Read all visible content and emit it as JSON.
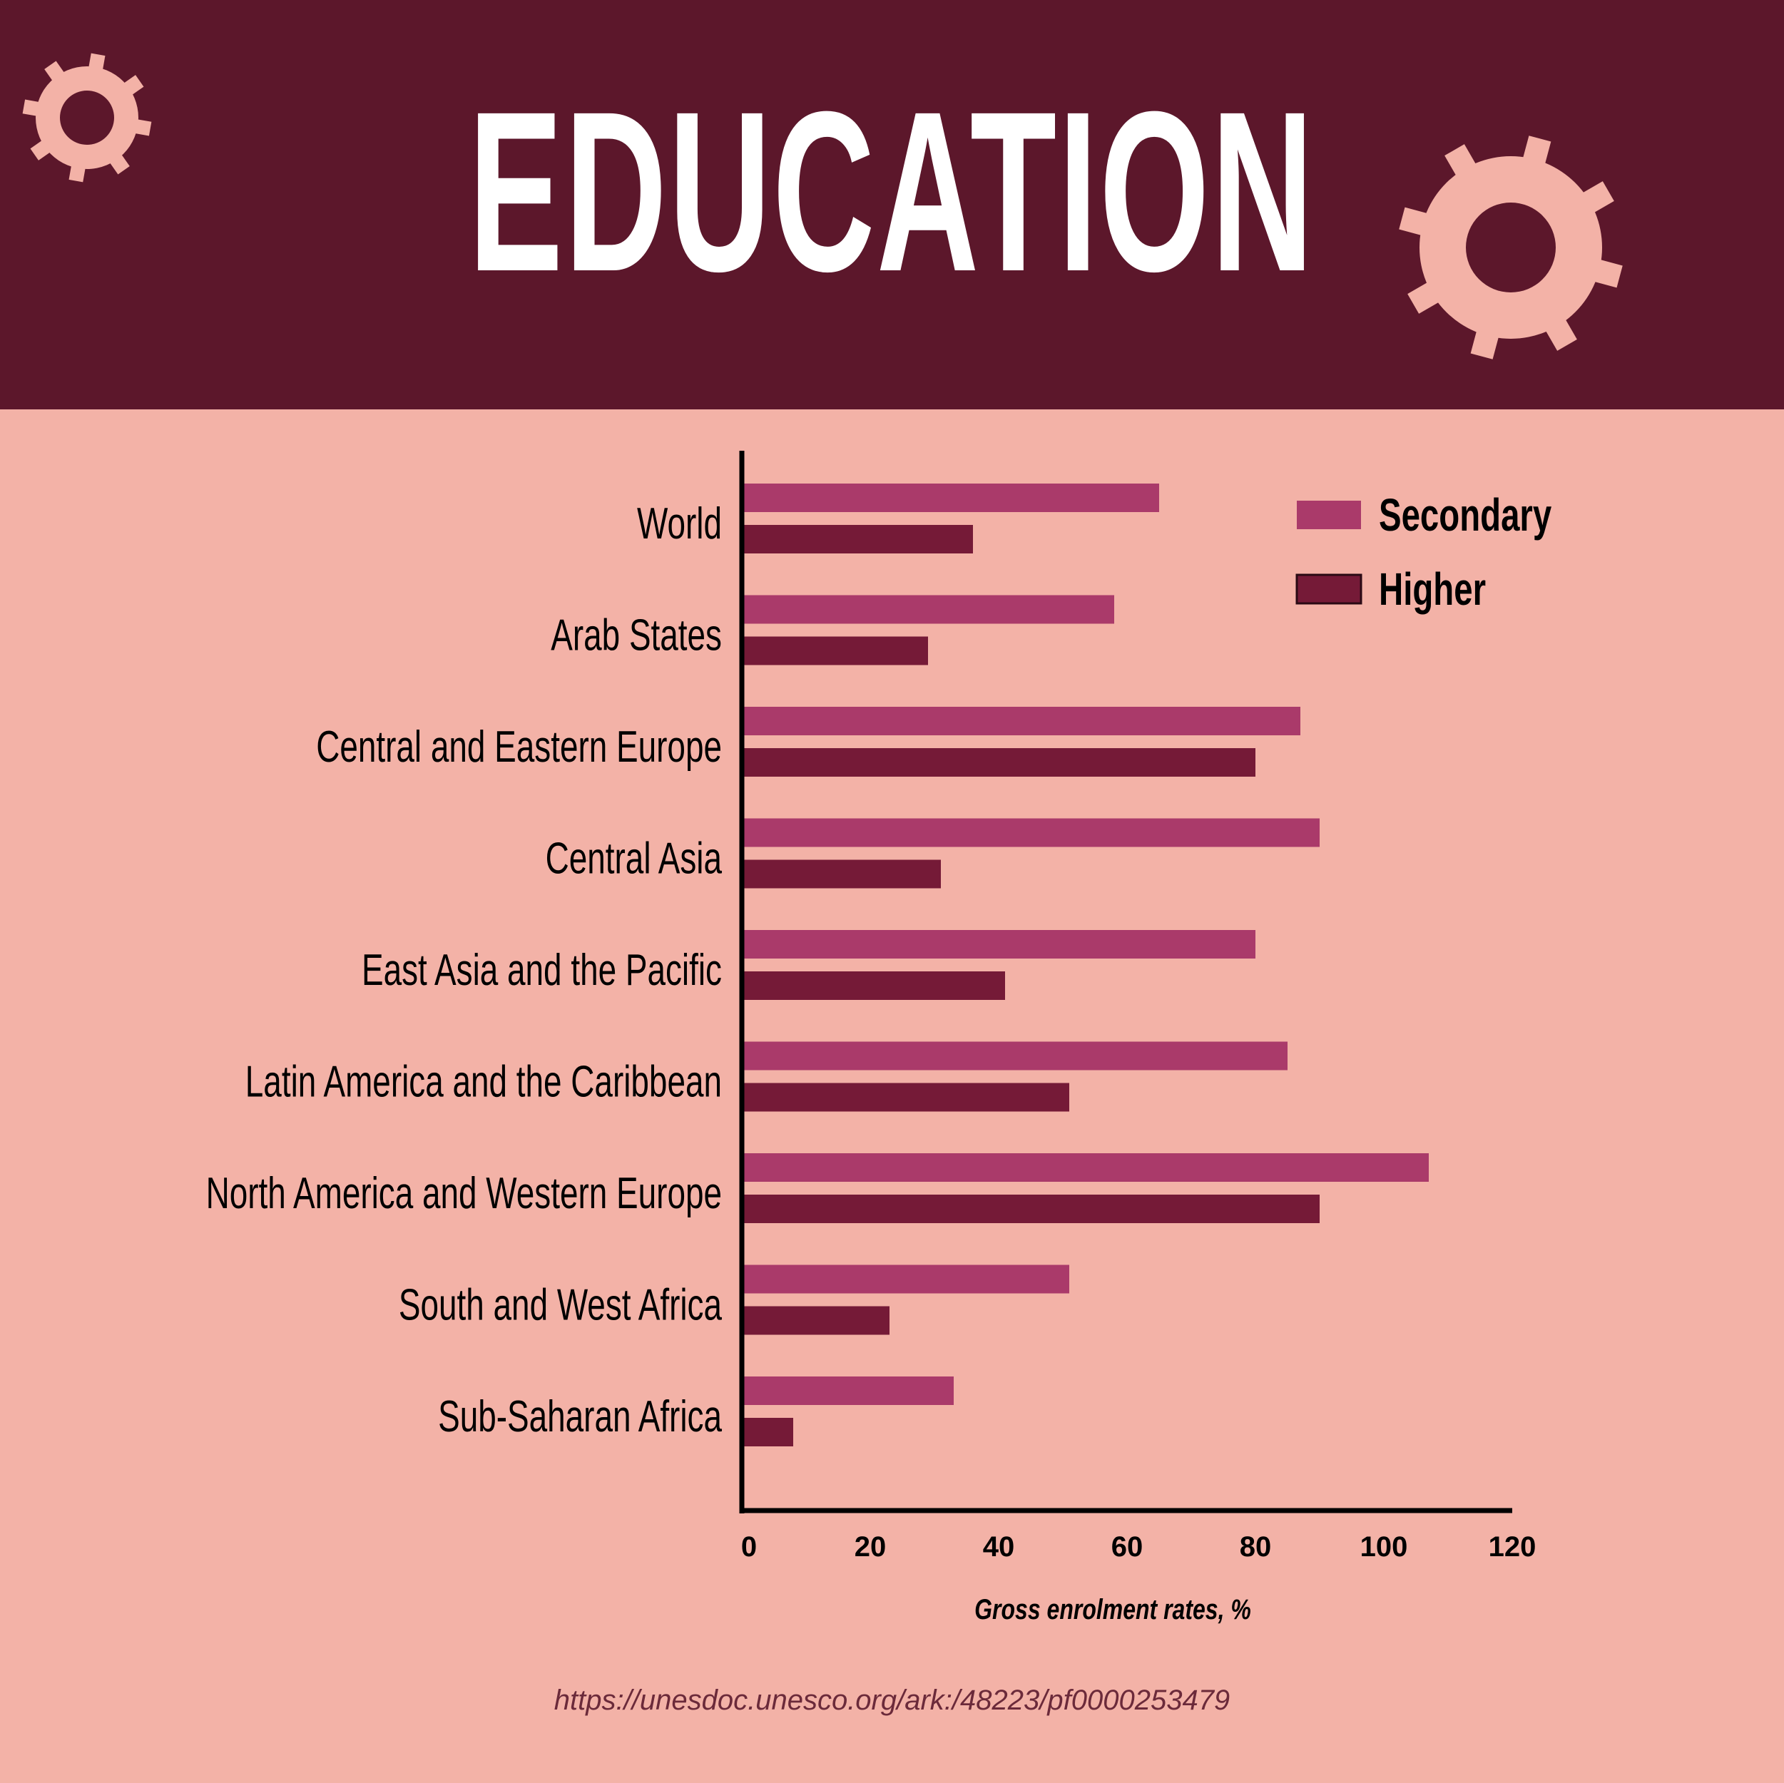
{
  "header": {
    "title": "EDUCATION"
  },
  "colors": {
    "header_bg": "#5c172b",
    "page_bg": "#f3b2a7",
    "gear": "#f3b2a7",
    "secondary": "#aa3a6a",
    "higher": "#751a37",
    "axis": "#000000",
    "text": "#000000"
  },
  "icons": [
    "gear-icon",
    "gear-icon"
  ],
  "chart_data": {
    "type": "bar",
    "orientation": "horizontal",
    "categories": [
      "World",
      "Arab States",
      "Central and Eastern Europe",
      "Central Asia",
      "East Asia and the Pacific",
      "Latin America and the Caribbean",
      "North America and Western Europe",
      "South and West Africa",
      "Sub-Saharan Africa"
    ],
    "series": [
      {
        "name": "Secondary",
        "color": "#aa3a6a",
        "values": [
          65,
          58,
          87,
          90,
          80,
          85,
          107,
          51,
          33
        ]
      },
      {
        "name": "Higher",
        "color": "#751a37",
        "values": [
          36,
          29,
          80,
          31,
          41,
          51,
          90,
          23,
          8
        ]
      }
    ],
    "xlabel": "Gross enrolment rates, %",
    "ylabel": "",
    "xlim": [
      0,
      120
    ],
    "xticks": [
      "0",
      "20",
      "40",
      "60",
      "80",
      "100",
      "120"
    ],
    "legend": "top-right",
    "grid": false
  },
  "source": "https://unesdoc.unesco.org/ark:/48223/pf0000253479"
}
